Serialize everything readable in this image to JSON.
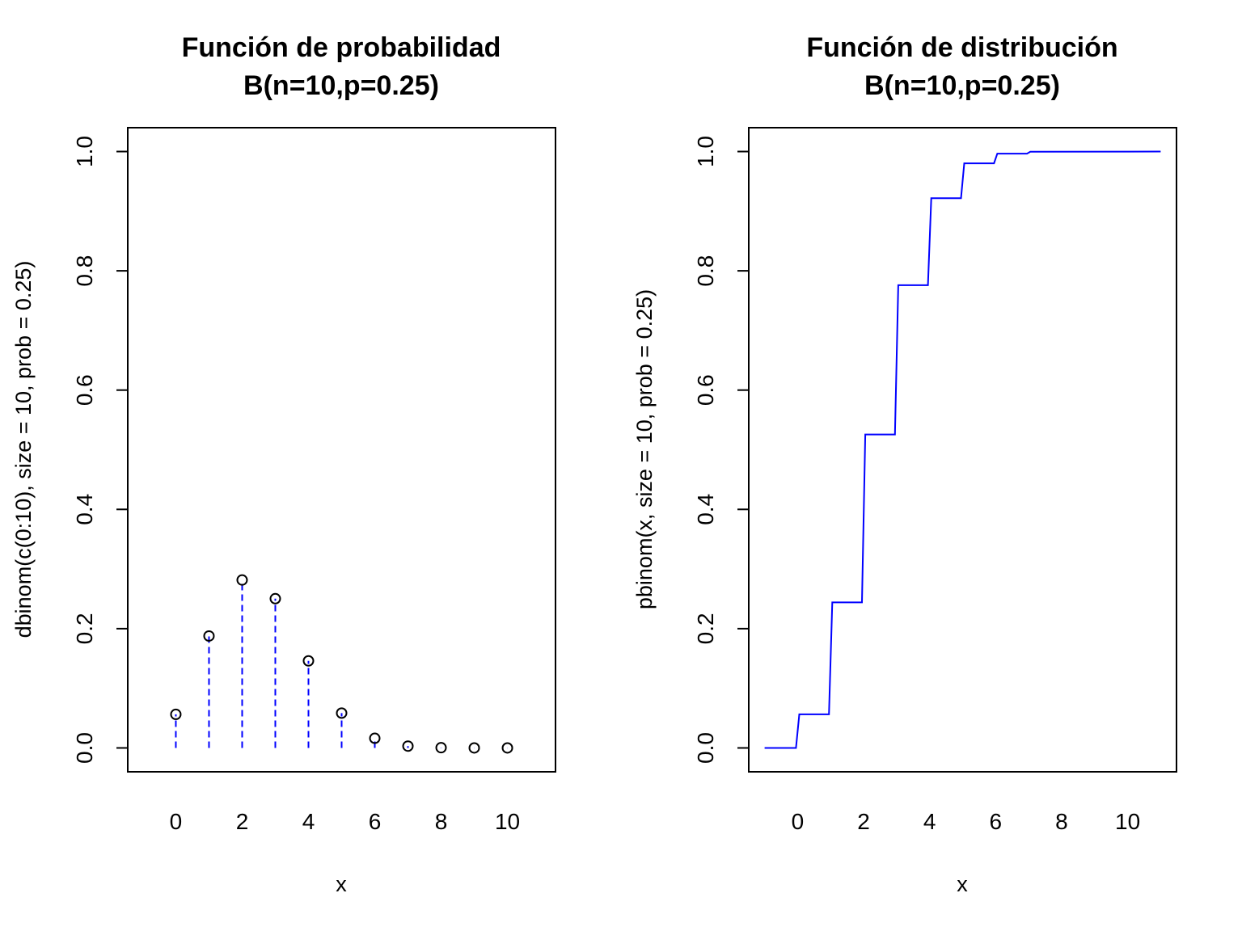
{
  "chart_data": [
    {
      "type": "scatter",
      "title": "Función de probabilidad",
      "subtitle": "B(n=10,p=0.25)",
      "xlabel": "x",
      "ylabel": "dbinom(c(0:10), size = 10, prob = 0.25)",
      "xlim": [
        -1.45,
        11.45
      ],
      "ylim": [
        -0.04,
        1.04
      ],
      "xticks": [
        "0",
        "2",
        "4",
        "6",
        "8",
        "10"
      ],
      "xtick_values": [
        0,
        2,
        4,
        6,
        8,
        10
      ],
      "yticks": [
        "0.0",
        "0.2",
        "0.4",
        "0.6",
        "0.8",
        "1.0"
      ],
      "ytick_values": [
        0,
        0.2,
        0.4,
        0.6,
        0.8,
        1.0
      ],
      "grid": false,
      "points_marker": "open-circle",
      "stem_color": "#0000ff",
      "x": [
        0,
        1,
        2,
        3,
        4,
        5,
        6,
        7,
        8,
        9,
        10
      ],
      "values": [
        0.0563,
        0.1877,
        0.2816,
        0.2503,
        0.146,
        0.0584,
        0.0162,
        0.0031,
        0.0004,
        0.0,
        0.0
      ]
    },
    {
      "type": "line",
      "title": "Función de distribución",
      "subtitle": "B(n=10,p=0.25)",
      "xlabel": "x",
      "ylabel": "pbinom(x, size = 10, prob = 0.25)",
      "xlim": [
        -1.48,
        11.48
      ],
      "ylim": [
        -0.04,
        1.04
      ],
      "xticks": [
        "0",
        "2",
        "4",
        "6",
        "8",
        "10"
      ],
      "xtick_values": [
        0,
        2,
        4,
        6,
        8,
        10
      ],
      "yticks": [
        "0.0",
        "0.2",
        "0.4",
        "0.6",
        "0.8",
        "1.0"
      ],
      "ytick_values": [
        0,
        0.2,
        0.4,
        0.6,
        0.8,
        1.0
      ],
      "grid": false,
      "line_color": "#0000ff",
      "step": true,
      "x": [
        -1,
        -0.05,
        0.05,
        0.95,
        1.05,
        1.95,
        2.05,
        2.95,
        3.05,
        3.95,
        4.05,
        4.95,
        5.05,
        5.95,
        6.05,
        6.95,
        7.05,
        11
      ],
      "values": [
        0,
        0,
        0.0563,
        0.0563,
        0.244,
        0.244,
        0.5256,
        0.5256,
        0.7759,
        0.7759,
        0.9219,
        0.9219,
        0.9803,
        0.9803,
        0.9965,
        0.9965,
        0.9996,
        1.0
      ]
    }
  ]
}
